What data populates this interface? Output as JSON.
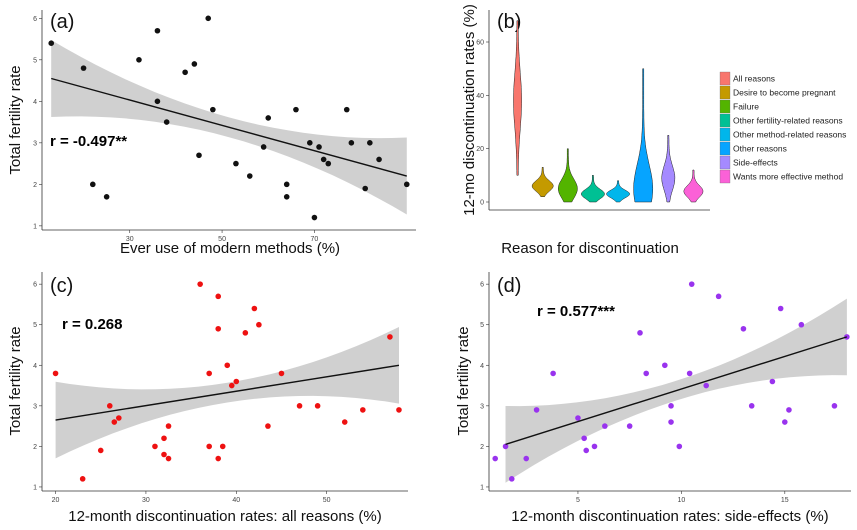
{
  "chart_data": [
    {
      "panel": "(a)",
      "type": "scatter",
      "xlabel": "Ever use of modern methods (%)",
      "ylabel": "Total fertility rate",
      "annotation": "r = -0.497**",
      "xlim": [
        11,
        92
      ],
      "ylim": [
        0.9,
        6.2
      ],
      "xticks": [
        30,
        50,
        70
      ],
      "yticks": [
        1,
        2,
        3,
        4,
        5,
        6
      ],
      "fit": [
        [
          13,
          4.55
        ],
        [
          90,
          2.2
        ]
      ],
      "points": [
        [
          13,
          5.4
        ],
        [
          20,
          4.8
        ],
        [
          22,
          2.0
        ],
        [
          25,
          1.7
        ],
        [
          32,
          5.0
        ],
        [
          36,
          5.7
        ],
        [
          36,
          4.0
        ],
        [
          38,
          3.5
        ],
        [
          42,
          4.7
        ],
        [
          44,
          4.9
        ],
        [
          45,
          2.7
        ],
        [
          47,
          6.0
        ],
        [
          48,
          3.8
        ],
        [
          53,
          2.5
        ],
        [
          56,
          2.2
        ],
        [
          59,
          2.9
        ],
        [
          60,
          3.6
        ],
        [
          64,
          2.0
        ],
        [
          64,
          1.7
        ],
        [
          66,
          3.8
        ],
        [
          69,
          3.0
        ],
        [
          70,
          1.2
        ],
        [
          71,
          2.9
        ],
        [
          72,
          2.6
        ],
        [
          73,
          2.5
        ],
        [
          77,
          3.8
        ],
        [
          78,
          3.0
        ],
        [
          81,
          1.9
        ],
        [
          82,
          3.0
        ],
        [
          84,
          2.6
        ],
        [
          90,
          2.0
        ]
      ]
    },
    {
      "panel": "(b)",
      "type": "violin",
      "xlabel": "Reason for discontinuation",
      "ylabel": "12-mo discontinuation rates (%)",
      "ylim": [
        -3,
        72
      ],
      "yticks": [
        0,
        20,
        40,
        60
      ],
      "legend": [
        {
          "name": "All reasons",
          "color": "#f8766d",
          "min": 10,
          "max": 68,
          "median": 38,
          "mode": 38,
          "half_width": 3.5
        },
        {
          "name": "Desire to become pregnant",
          "color": "#c49a00",
          "min": 2,
          "max": 13,
          "median": 6,
          "mode": 6,
          "half_width": 10
        },
        {
          "name": "Failure",
          "color": "#53b400",
          "min": 0,
          "max": 20,
          "median": 5,
          "mode": 5,
          "half_width": 9
        },
        {
          "name": "Other fertility-related reasons",
          "color": "#00c094",
          "min": 0,
          "max": 10,
          "median": 3,
          "mode": 3,
          "half_width": 11
        },
        {
          "name": "Other method-related reasons",
          "color": "#00b6eb",
          "min": 0,
          "max": 8,
          "median": 3,
          "mode": 3,
          "half_width": 11
        },
        {
          "name": "Other reasons",
          "color": "#06a4ff",
          "min": 0,
          "max": 50,
          "median": 6,
          "mode": 5,
          "half_width": 9
        },
        {
          "name": "Side-effects",
          "color": "#a58aff",
          "min": 0,
          "max": 25,
          "median": 10,
          "mode": 9,
          "half_width": 6
        },
        {
          "name": "Wants more effective method",
          "color": "#fb61d7",
          "min": 0,
          "max": 12,
          "median": 4,
          "mode": 4,
          "half_width": 9
        }
      ],
      "legend_position": "right"
    },
    {
      "panel": "(c)",
      "type": "scatter",
      "xlabel": "12-month discontinuation rates: all reasons (%)",
      "ylabel": "Total fertility rate",
      "annotation": "r = 0.268",
      "xlim": [
        18.5,
        59
      ],
      "ylim": [
        0.9,
        6.3
      ],
      "xticks": [
        20,
        30,
        40,
        50
      ],
      "yticks": [
        1,
        2,
        3,
        4,
        5,
        6
      ],
      "color": "#ee1111",
      "fit": [
        [
          20,
          2.65
        ],
        [
          58,
          4.0
        ]
      ],
      "points": [
        [
          20,
          3.8
        ],
        [
          23,
          1.2
        ],
        [
          25,
          1.9
        ],
        [
          26,
          3.0
        ],
        [
          26.5,
          2.6
        ],
        [
          27,
          2.7
        ],
        [
          31,
          2.0
        ],
        [
          32,
          2.2
        ],
        [
          32,
          1.8
        ],
        [
          32.5,
          1.7
        ],
        [
          32.5,
          2.5
        ],
        [
          36,
          6.0
        ],
        [
          37,
          3.8
        ],
        [
          37,
          2.0
        ],
        [
          38,
          4.9
        ],
        [
          38,
          5.7
        ],
        [
          38,
          1.7
        ],
        [
          38.5,
          2.0
        ],
        [
          39,
          4.0
        ],
        [
          39.5,
          3.5
        ],
        [
          40,
          3.6
        ],
        [
          41,
          4.8
        ],
        [
          42,
          5.4
        ],
        [
          42.5,
          5.0
        ],
        [
          43.5,
          2.5
        ],
        [
          45,
          3.8
        ],
        [
          47,
          3.0
        ],
        [
          49,
          3.0
        ],
        [
          52,
          2.6
        ],
        [
          54,
          2.9
        ],
        [
          57,
          4.7
        ],
        [
          58,
          2.9
        ]
      ]
    },
    {
      "panel": "(d)",
      "type": "scatter",
      "xlabel": "12-month discontinuation rates: side-effects (%)",
      "ylabel": "Total fertility rate",
      "annotation": "r = 0.577***",
      "xlim": [
        0.7,
        18.2
      ],
      "ylim": [
        0.9,
        6.3
      ],
      "xticks": [
        5,
        10,
        15
      ],
      "yticks": [
        1,
        2,
        3,
        4,
        5,
        6
      ],
      "color": "#9933ee",
      "fit": [
        [
          1.5,
          2.05
        ],
        [
          18,
          4.7
        ]
      ],
      "points": [
        [
          1,
          1.7
        ],
        [
          1.5,
          2.0
        ],
        [
          1.8,
          1.2
        ],
        [
          2.5,
          1.7
        ],
        [
          3,
          2.9
        ],
        [
          3.8,
          3.8
        ],
        [
          5,
          2.7
        ],
        [
          5.3,
          2.2
        ],
        [
          5.4,
          1.9
        ],
        [
          5.8,
          2.0
        ],
        [
          6.3,
          2.5
        ],
        [
          7.5,
          2.5
        ],
        [
          8,
          4.8
        ],
        [
          8.3,
          3.8
        ],
        [
          9.2,
          4.0
        ],
        [
          9.5,
          2.6
        ],
        [
          9.5,
          3.0
        ],
        [
          9.9,
          2.0
        ],
        [
          10.4,
          3.8
        ],
        [
          10.5,
          6.0
        ],
        [
          11.2,
          3.5
        ],
        [
          11.8,
          5.7
        ],
        [
          13,
          4.9
        ],
        [
          13.4,
          3.0
        ],
        [
          14.4,
          3.6
        ],
        [
          14.8,
          5.4
        ],
        [
          15,
          2.6
        ],
        [
          15.2,
          2.9
        ],
        [
          15.8,
          5.0
        ],
        [
          17.4,
          3.0
        ],
        [
          18,
          4.7
        ]
      ]
    }
  ]
}
